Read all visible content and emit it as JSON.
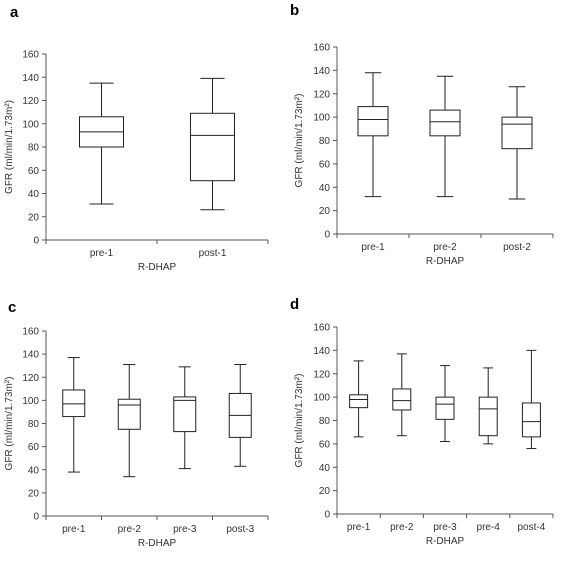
{
  "chart_data": [
    {
      "panel": "a",
      "type": "boxplot",
      "xlabel": "R-DHAP",
      "ylabel": "GFR (ml/min/1.73m²)",
      "ylim": [
        0,
        160
      ],
      "yticks": [
        0,
        20,
        40,
        60,
        80,
        100,
        120,
        140,
        160
      ],
      "categories": [
        "pre-1",
        "post-1"
      ],
      "boxes": [
        {
          "min": 31,
          "q1": 80,
          "median": 93,
          "q3": 106,
          "max": 135
        },
        {
          "min": 26,
          "q1": 51,
          "median": 90,
          "q3": 109,
          "max": 139
        }
      ]
    },
    {
      "panel": "b",
      "type": "boxplot",
      "xlabel": "R-DHAP",
      "ylabel": "GFR (ml/min/1.73m²)",
      "ylim": [
        0,
        160
      ],
      "yticks": [
        0,
        20,
        40,
        60,
        80,
        100,
        120,
        140,
        160
      ],
      "categories": [
        "pre-1",
        "pre-2",
        "post-2"
      ],
      "boxes": [
        {
          "min": 32,
          "q1": 84,
          "median": 98,
          "q3": 109,
          "max": 138
        },
        {
          "min": 32,
          "q1": 84,
          "median": 96,
          "q3": 106,
          "max": 135
        },
        {
          "min": 30,
          "q1": 73,
          "median": 94,
          "q3": 100,
          "max": 126
        }
      ]
    },
    {
      "panel": "c",
      "type": "boxplot",
      "xlabel": "R-DHAP",
      "ylabel": "GFR (ml/min/1.73m²)",
      "ylim": [
        0,
        160
      ],
      "yticks": [
        0,
        20,
        40,
        60,
        80,
        100,
        120,
        140,
        160
      ],
      "categories": [
        "pre-1",
        "pre-2",
        "pre-3",
        "post-3"
      ],
      "boxes": [
        {
          "min": 38,
          "q1": 86,
          "median": 97,
          "q3": 109,
          "max": 137
        },
        {
          "min": 34,
          "q1": 75,
          "median": 96,
          "q3": 101,
          "max": 131
        },
        {
          "min": 41,
          "q1": 73,
          "median": 100,
          "q3": 103,
          "max": 129
        },
        {
          "min": 43,
          "q1": 68,
          "median": 87,
          "q3": 106,
          "max": 131
        }
      ]
    },
    {
      "panel": "d",
      "type": "boxplot",
      "xlabel": "R-DHAP",
      "ylabel": "GFR (ml/min/1.73m²)",
      "ylim": [
        0,
        160
      ],
      "yticks": [
        0,
        20,
        40,
        60,
        80,
        100,
        120,
        140,
        160
      ],
      "categories": [
        "pre-1",
        "pre-2",
        "pre-3",
        "pre-4",
        "post-4"
      ],
      "boxes": [
        {
          "min": 66,
          "q1": 91,
          "median": 98,
          "q3": 102,
          "max": 131
        },
        {
          "min": 67,
          "q1": 89,
          "median": 97,
          "q3": 107,
          "max": 137
        },
        {
          "min": 62,
          "q1": 81,
          "median": 94,
          "q3": 100,
          "max": 127
        },
        {
          "min": 60,
          "q1": 67,
          "median": 90,
          "q3": 100,
          "max": 125
        },
        {
          "min": 56,
          "q1": 66,
          "median": 79,
          "q3": 95,
          "max": 140
        }
      ]
    }
  ]
}
